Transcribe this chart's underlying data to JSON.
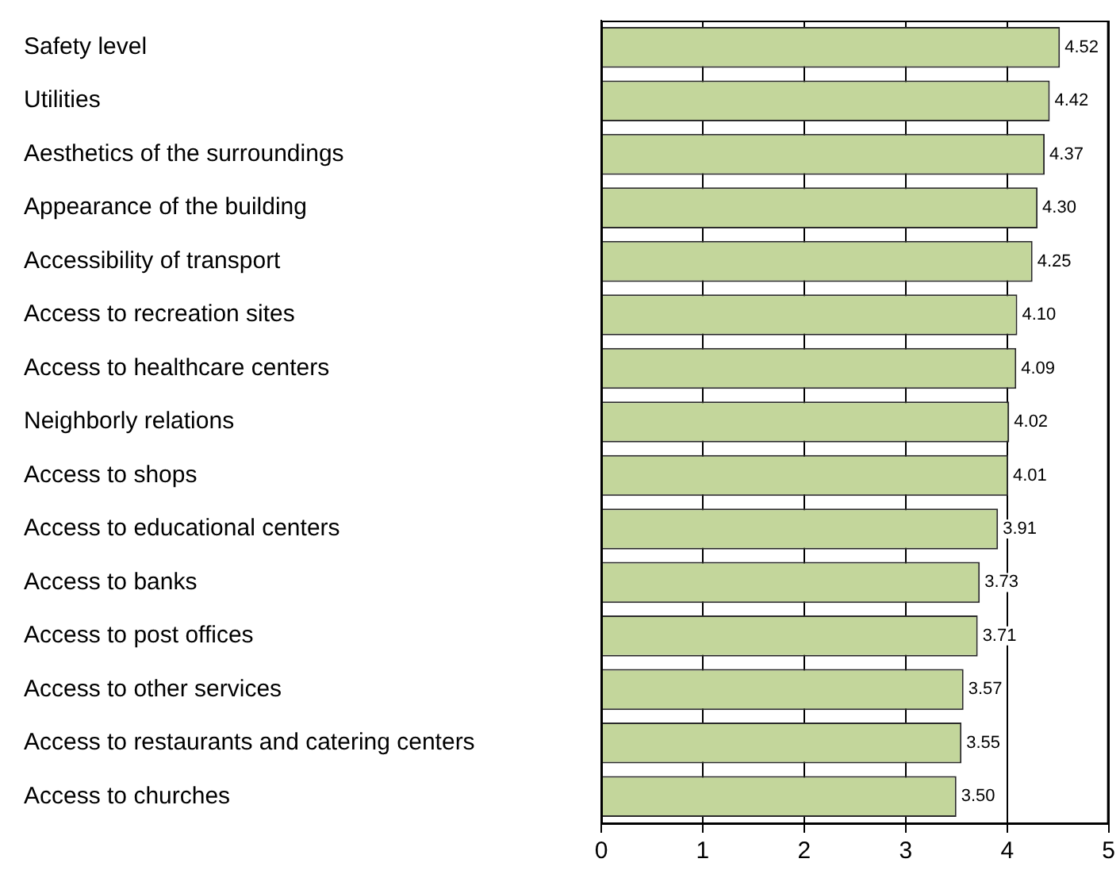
{
  "chart_data": {
    "type": "bar",
    "orientation": "horizontal",
    "categories": [
      "Safety level",
      "Utilities",
      "Aesthetics of the surroundings",
      "Appearance of the building",
      "Accessibility of transport",
      "Access to recreation sites",
      "Access to healthcare centers",
      "Neighborly relations",
      "Access to shops",
      "Access to educational centers",
      "Access to banks",
      "Access to post offices",
      "Access to other services",
      "Access to restaurants and catering centers",
      "Access to churches"
    ],
    "values": [
      4.52,
      4.42,
      4.37,
      4.3,
      4.25,
      4.1,
      4.09,
      4.02,
      4.01,
      3.91,
      3.73,
      3.71,
      3.57,
      3.55,
      3.5
    ],
    "color": "#c3d69b",
    "value_labels": [
      "4.52",
      "4.42",
      "4.37",
      "4.30",
      "4.25",
      "4.10",
      "4.09",
      "4.02",
      "4.01",
      "3.91",
      "3.73",
      "3.71",
      "3.57",
      "3.55",
      "3.50"
    ],
    "xlim": [
      0,
      5
    ],
    "xticks": [
      0,
      1,
      2,
      3,
      4,
      5
    ],
    "grid": "x",
    "legend": false
  }
}
